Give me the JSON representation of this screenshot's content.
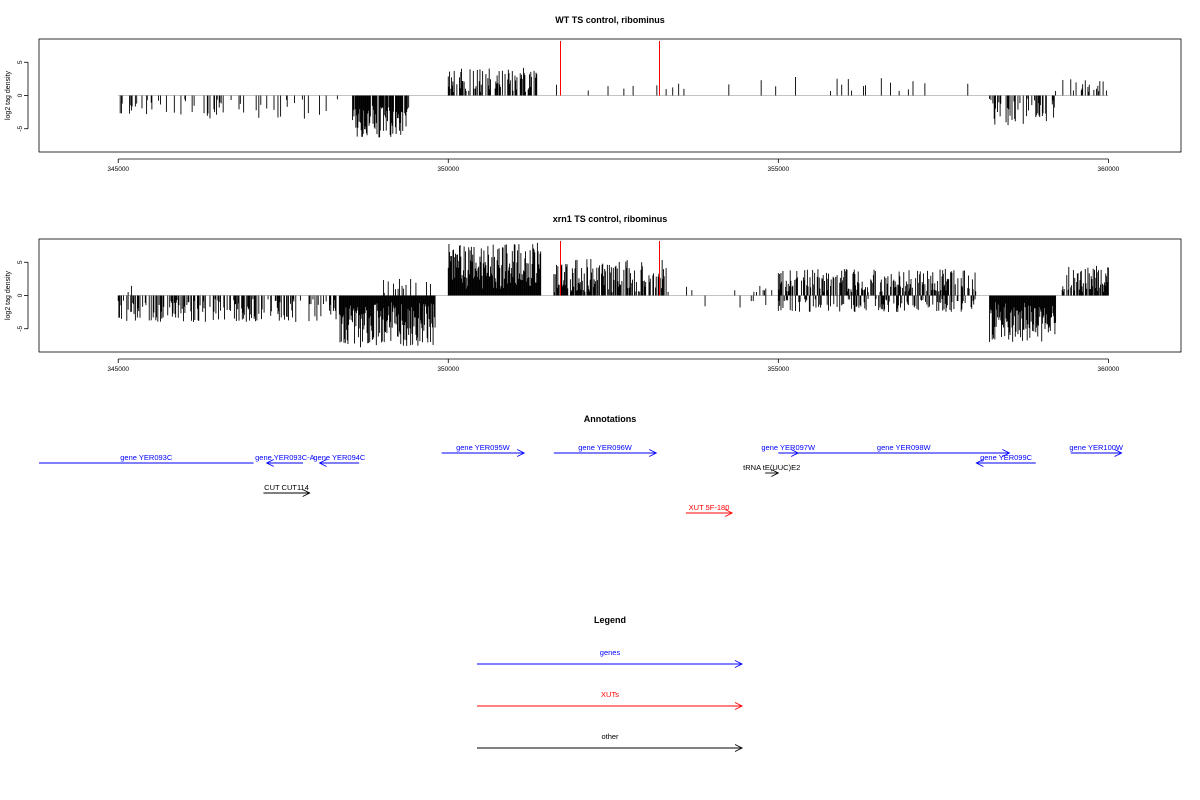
{
  "colors": {
    "genes": "#0000ff",
    "XUTs": "#ff0000",
    "other": "#000000",
    "highlight": "#ff0000",
    "axis": "#000000",
    "baseline": "#b0b0b0"
  },
  "chart_data": [
    {
      "type": "bar",
      "title": "WT TS control, ribominus",
      "ylabel": "log2 tag density",
      "xlim": [
        343800,
        361100
      ],
      "ylim": [
        -8.5,
        8.5
      ],
      "xticks": [
        "345000",
        "350000",
        "355000",
        "360000"
      ],
      "yticks": [
        "-5",
        "0",
        "5"
      ],
      "segments": [
        {
          "from": 345000,
          "to": 348300,
          "sign": -1,
          "density": 0.16,
          "min": 0.6,
          "max": 3.5,
          "seed": 11
        },
        {
          "from": 348300,
          "to": 348550,
          "sign": -1,
          "density": 0.08,
          "min": 0.5,
          "max": 1.2,
          "seed": 12
        },
        {
          "from": 348550,
          "to": 349400,
          "sign": -1,
          "density": 0.9,
          "min": 1.5,
          "max": 6.3,
          "seed": 13
        },
        {
          "from": 349900,
          "to": 350000,
          "sign": -1,
          "density": 0.06,
          "min": 1.5,
          "max": 3.0,
          "seed": 14
        },
        {
          "from": 350000,
          "to": 351350,
          "sign": 1,
          "density": 0.55,
          "min": 0.5,
          "max": 4.2,
          "seed": 15
        },
        {
          "from": 351350,
          "to": 354500,
          "sign": 1,
          "density": 0.04,
          "min": 0.5,
          "max": 2.0,
          "seed": 16
        },
        {
          "from": 354500,
          "to": 356700,
          "sign": 1,
          "density": 0.05,
          "min": 0.6,
          "max": 2.8,
          "seed": 17
        },
        {
          "from": 356700,
          "to": 358000,
          "sign": 1,
          "density": 0.035,
          "min": 0.5,
          "max": 2.2,
          "seed": 18
        },
        {
          "from": 358200,
          "to": 359200,
          "sign": -1,
          "density": 0.45,
          "min": 0.5,
          "max": 4.5,
          "seed": 19
        },
        {
          "from": 359200,
          "to": 360000,
          "sign": 1,
          "density": 0.3,
          "min": 0.5,
          "max": 2.5,
          "seed": 20
        }
      ],
      "highlights": [
        {
          "x": 351700,
          "y": 8.2
        },
        {
          "x": 353200,
          "y": 8.2
        }
      ]
    },
    {
      "type": "bar",
      "title": "xrn1 TS control, ribominus",
      "ylabel": "log2 tag density",
      "xlim": [
        343800,
        361100
      ],
      "ylim": [
        -8.5,
        8.5
      ],
      "xticks": [
        "345000",
        "350000",
        "355000",
        "360000"
      ],
      "yticks": [
        "-5",
        "0",
        "5"
      ],
      "segments": [
        {
          "from": 345000,
          "to": 348300,
          "sign": -1,
          "density": 0.45,
          "min": 0.5,
          "max": 4.0,
          "seed": 31
        },
        {
          "from": 345150,
          "to": 345250,
          "sign": 1,
          "density": 0.3,
          "min": 0.3,
          "max": 1.5,
          "seed": 32
        },
        {
          "from": 348350,
          "to": 349800,
          "sign": -1,
          "density": 1.0,
          "min": 1.0,
          "max": 7.8,
          "seed": 33
        },
        {
          "from": 349000,
          "to": 349800,
          "sign": 1,
          "density": 0.15,
          "min": 0.3,
          "max": 2.5,
          "seed": 34
        },
        {
          "from": 350000,
          "to": 351400,
          "sign": 1,
          "density": 1.0,
          "min": 1.0,
          "max": 8.0,
          "seed": 35
        },
        {
          "from": 351600,
          "to": 353300,
          "sign": 1,
          "density": 0.7,
          "min": 0.5,
          "max": 5.5,
          "seed": 36
        },
        {
          "from": 353300,
          "to": 354900,
          "sign": 1,
          "density": 0.06,
          "min": 0.5,
          "max": 1.5,
          "seed": 37
        },
        {
          "from": 353300,
          "to": 354900,
          "sign": -1,
          "density": 0.03,
          "min": 0.5,
          "max": 2.0,
          "seed": 38
        },
        {
          "from": 355000,
          "to": 358000,
          "sign": 1,
          "density": 0.55,
          "min": 0.5,
          "max": 4.0,
          "seed": 39
        },
        {
          "from": 355000,
          "to": 358000,
          "sign": -1,
          "density": 0.4,
          "min": 0.5,
          "max": 2.5,
          "seed": 40
        },
        {
          "from": 358200,
          "to": 359200,
          "sign": -1,
          "density": 1.0,
          "min": 1.0,
          "max": 7.0,
          "seed": 41
        },
        {
          "from": 359300,
          "to": 360000,
          "sign": 1,
          "density": 0.8,
          "min": 0.5,
          "max": 4.5,
          "seed": 42
        }
      ],
      "highlights": [
        {
          "x": 351700,
          "y": 8.2
        },
        {
          "x": 353200,
          "y": 8.2
        }
      ]
    }
  ],
  "annotations": {
    "title": "Annotations",
    "features": [
      {
        "label": "gene YER093C",
        "type": "genes",
        "from": 343800,
        "to": 347050,
        "dir": -1,
        "row": 1,
        "arrow": false
      },
      {
        "label": "gene YER093C-A",
        "type": "genes",
        "from": 347250,
        "to": 347800,
        "dir": -1,
        "row": 1
      },
      {
        "label": "gene YER094C",
        "type": "genes",
        "from": 348050,
        "to": 348650,
        "dir": -1,
        "row": 1
      },
      {
        "label": "gene YER095W",
        "type": "genes",
        "from": 349900,
        "to": 351150,
        "dir": 1,
        "row": 0
      },
      {
        "label": "gene YER096W",
        "type": "genes",
        "from": 351600,
        "to": 353150,
        "dir": 1,
        "row": 0
      },
      {
        "label": "gene YER097W",
        "type": "genes",
        "from": 355000,
        "to": 355300,
        "dir": 1,
        "row": 0
      },
      {
        "label": "gene YER098W",
        "type": "genes",
        "from": 355300,
        "to": 358500,
        "dir": 1,
        "row": 0
      },
      {
        "label": "gene YER099C",
        "type": "genes",
        "from": 358000,
        "to": 358900,
        "dir": -1,
        "row": 1
      },
      {
        "label": "gene YER100W",
        "type": "genes",
        "from": 359430,
        "to": 360200,
        "dir": 1,
        "row": 0
      },
      {
        "label": "tRNA tE(UUC)E2",
        "type": "other",
        "from": 354800,
        "to": 355000,
        "dir": 1,
        "row": 2
      },
      {
        "label": "CUT CUT114",
        "type": "other",
        "from": 347200,
        "to": 347900,
        "dir": 1,
        "row": 4
      },
      {
        "label": "XUT 5F-180",
        "type": "XUTs",
        "from": 353600,
        "to": 354300,
        "dir": 1,
        "row": 6
      }
    ]
  },
  "legend": {
    "title": "Legend",
    "items": [
      {
        "label": "genes",
        "type": "genes"
      },
      {
        "label": "XUTs",
        "type": "XUTs"
      },
      {
        "label": "other",
        "type": "other"
      }
    ]
  }
}
